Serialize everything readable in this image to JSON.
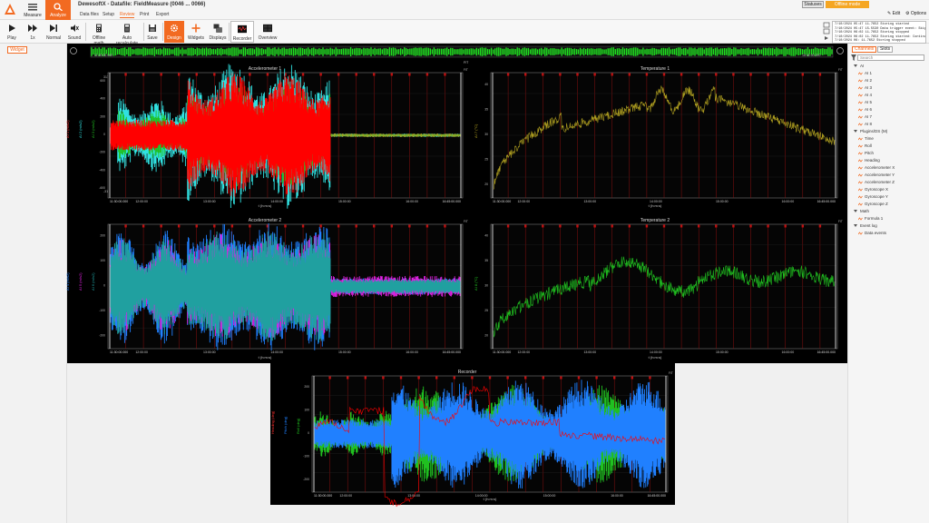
{
  "app": {
    "datafile_title": "DewesoftX - Datafile: FieldMeasure (0046 ... 0066)"
  },
  "modes": [
    {
      "label": "Measure"
    },
    {
      "label": "Analyze"
    }
  ],
  "menu_tabs": [
    {
      "label": "Data files"
    },
    {
      "label": "Setup"
    },
    {
      "label": "Review"
    },
    {
      "label": "Print"
    },
    {
      "label": "Export"
    }
  ],
  "toolbar": {
    "play": "Play",
    "speed": "1x",
    "normal": "Normal",
    "sound": "Sound",
    "offline_math": "Offline math",
    "auto_recalculate": "Auto recalculate",
    "save": "Save",
    "design": "Design",
    "widgets": "Widgets",
    "displays": "Displays",
    "recorder": "Recorder",
    "overview": "Overview"
  },
  "status": {
    "statuses": "Statuses",
    "offline_mode": "Offline mode",
    "edit": "Edit",
    "options": "Options"
  },
  "event_log": [
    "7/10/2024 05:47 11.7652 Storing started",
    "7/10/2024 05:47 15.5530 Data trigger event: Skip",
    "7/10/2024 06:02 11.7652 Storing stopped",
    "7/10/2024 06:02 11.7652 Storing started: Continu",
    "7/10/2024 06: 11.7652 Storing stopped"
  ],
  "left_panel": {
    "widget_tab": "Widget"
  },
  "overview_bar": {
    "start": "11:30:00.000",
    "end": "16:45:00.000",
    "fit": "FIT"
  },
  "graphs": {
    "acc1": {
      "title": "Accelerometer 1",
      "xlabel": "t (h:m:s)",
      "x_ticks": [
        "11:30:00.000",
        "12:00:00",
        "13:00:00",
        "14:00:00",
        "15:00:00",
        "16:00:00",
        "16:45:00.000"
      ],
      "y_axis_1": "AI 1 (m/s2)",
      "y_axis_2": "AI 2 (m/s2)",
      "y_axis_3": "AI 3 (m/s2)",
      "y_ticks": [
        "600",
        "400",
        "200",
        "0",
        "-200",
        "-400",
        "-600"
      ],
      "y_max": "3172.88",
      "y_min": "-3172.88"
    },
    "temp1": {
      "title": "Temperature 1",
      "xlabel": "t (h:m:s)",
      "x_ticks": [
        "11:30:00.000",
        "12:00:00",
        "13:00:00",
        "14:00:00",
        "15:00:00",
        "16:00:00",
        "16:45:00.000"
      ],
      "y_axis": "AI 7 (°C)",
      "y_ticks": [
        "40",
        "35",
        "30",
        "25",
        "20"
      ]
    },
    "acc2": {
      "title": "Accelerometer 2",
      "xlabel": "t (h:m:s)",
      "x_ticks": [
        "11:30:00.000",
        "12:00:00",
        "13:00:00",
        "14:00:00",
        "15:00:00",
        "16:00:00",
        "16:45:00.000"
      ],
      "y_axis_1": "AI 4 (m/s2)",
      "y_axis_2": "AI 5 (m/s2)",
      "y_axis_3": "AI 6 (m/s2)",
      "y_ticks": [
        "200",
        "100",
        "0",
        "-100",
        "-200"
      ]
    },
    "temp2": {
      "title": "Temperature 2",
      "xlabel": "t (h:m:s)",
      "x_ticks": [
        "11:30:00.000",
        "12:00:00",
        "13:00:00",
        "14:00:00",
        "15:00:00",
        "16:00:00",
        "16:45:00.000"
      ],
      "y_axis": "AI 8 (°C)",
      "y_ticks": [
        "40",
        "35",
        "30",
        "25",
        "20"
      ]
    },
    "recorder": {
      "title": "Recorder",
      "xlabel": "t (h:m:s)",
      "x_ticks": [
        "11:30:00.000",
        "12:00:00",
        "13:00:00",
        "14:00:00",
        "15:00:00",
        "16:00:00",
        "16:45:00.000"
      ],
      "y_axis_1": "Heading (deg)",
      "y_axis_2": "Pitch (deg)",
      "y_axis_3": "Roll (deg)",
      "y_ticks": [
        "200",
        "100",
        "0",
        "-100",
        "-200"
      ]
    }
  },
  "right_panel": {
    "tab_channels": "Channels",
    "tab_slots": "Slots",
    "search_placeholder": "Search",
    "tree": [
      {
        "type": "group",
        "label": "AI"
      },
      {
        "type": "child",
        "label": "AI 1"
      },
      {
        "type": "child",
        "label": "AI 2"
      },
      {
        "type": "child",
        "label": "AI 3"
      },
      {
        "type": "child",
        "label": "AI 4"
      },
      {
        "type": "child",
        "label": "AI 5"
      },
      {
        "type": "child",
        "label": "AI 6"
      },
      {
        "type": "child",
        "label": "AI 7"
      },
      {
        "type": "child",
        "label": "AI 8"
      },
      {
        "type": "group",
        "label": "Plugins/DS (M)"
      },
      {
        "type": "child",
        "label": "Time"
      },
      {
        "type": "child",
        "label": "Roll"
      },
      {
        "type": "child",
        "label": "Pitch"
      },
      {
        "type": "child",
        "label": "Heading"
      },
      {
        "type": "child",
        "label": "Accelerometer X"
      },
      {
        "type": "child",
        "label": "Accelerometer Y"
      },
      {
        "type": "child",
        "label": "Accelerometer Z"
      },
      {
        "type": "child",
        "label": "Gyroscope X"
      },
      {
        "type": "child",
        "label": "Gyroscope Y"
      },
      {
        "type": "child",
        "label": "Gyroscope Z"
      },
      {
        "type": "group",
        "label": "Math"
      },
      {
        "type": "child",
        "label": "Formula 1"
      },
      {
        "type": "group",
        "label": "Event log"
      },
      {
        "type": "child",
        "label": "Data events"
      }
    ]
  },
  "colors": {
    "accent": "#f26a21",
    "offline": "#f5a623",
    "red_series": "#ff0000",
    "cyan_series": "#30e0e0",
    "teal_series": "#20a0a0",
    "blue_series": "#2080ff",
    "magenta_series": "#e020e0",
    "green_series": "#20c020",
    "olive_series": "#b0a020",
    "grid_red": "#8a1010",
    "axis_gray": "#bbbbbb"
  }
}
